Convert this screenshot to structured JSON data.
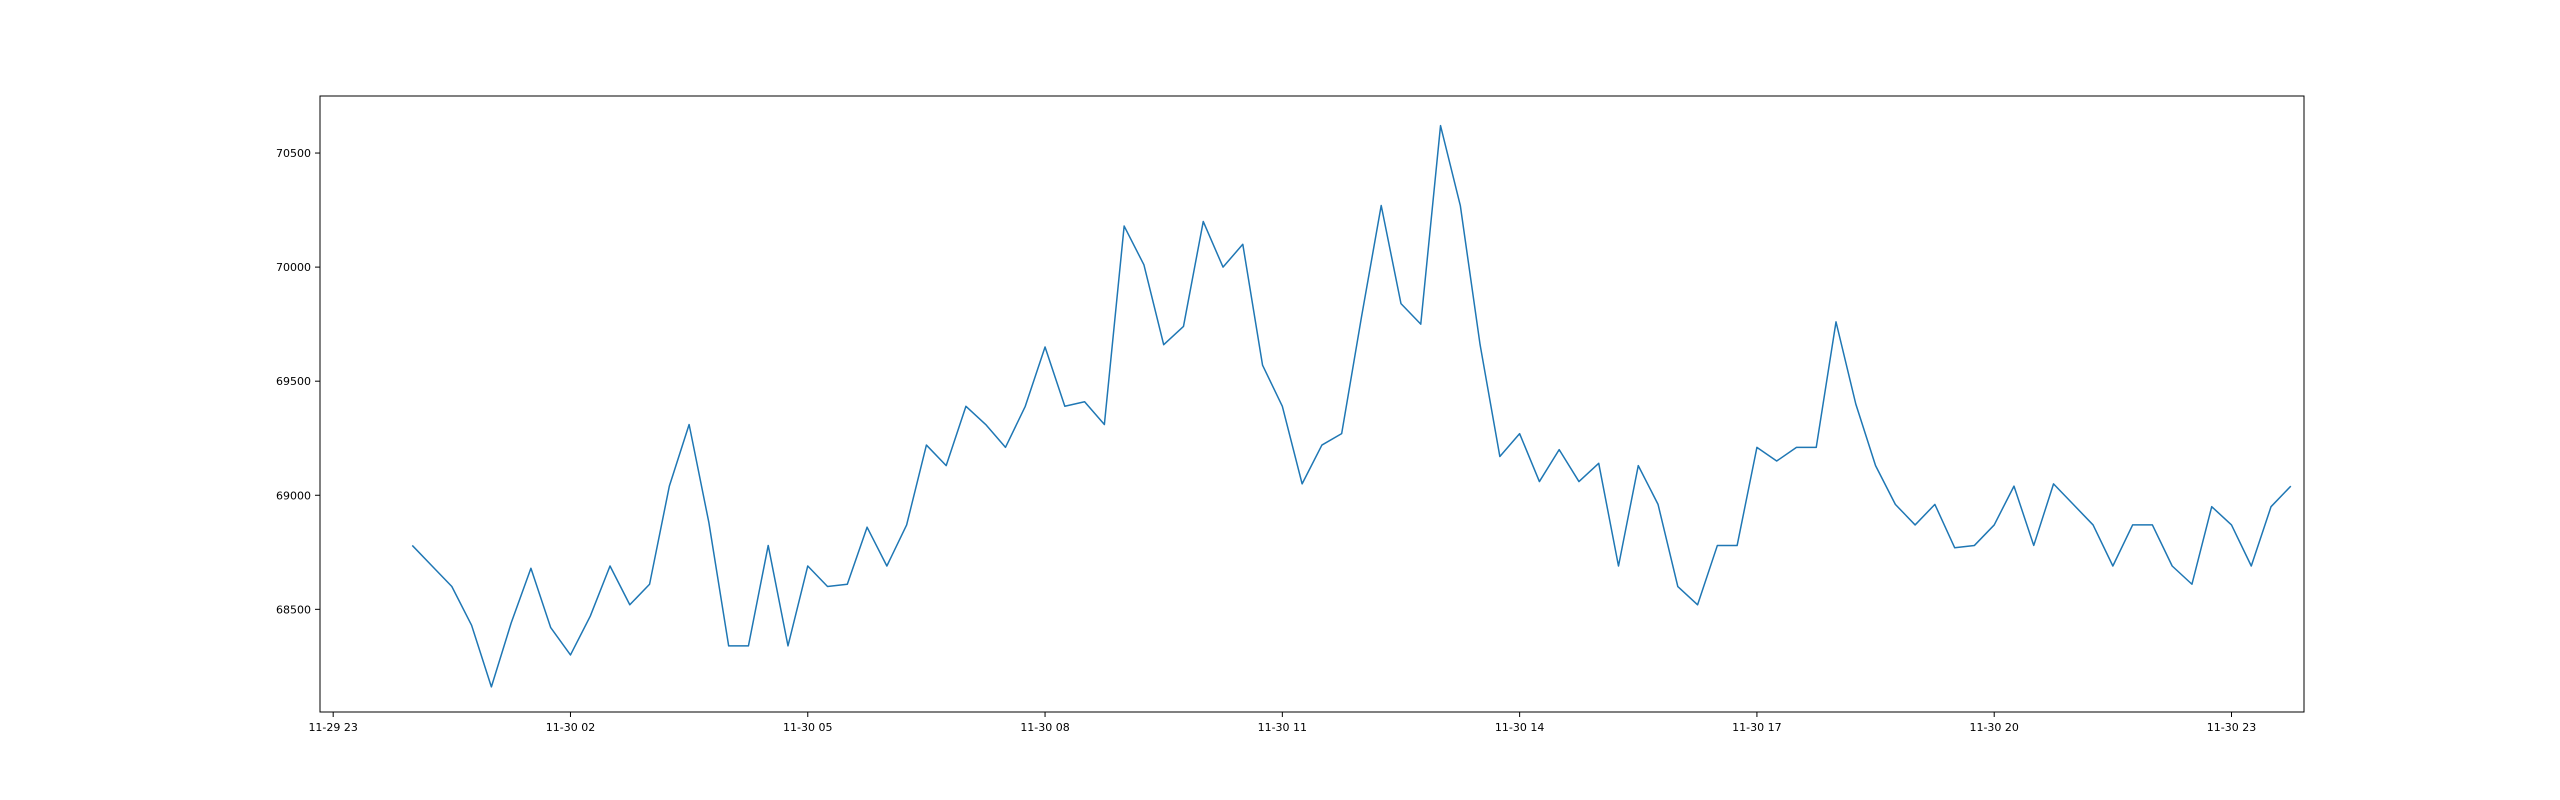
{
  "chart_data": {
    "type": "line",
    "title": "",
    "xlabel": "",
    "ylabel": "",
    "x_tick_labels": [
      "11-29 23",
      "11-30 02",
      "11-30 05",
      "11-30 08",
      "11-30 11",
      "11-30 14",
      "11-30 17",
      "11-30 20",
      "11-30 23"
    ],
    "y_tick_labels": [
      "68500",
      "69000",
      "69500",
      "70000",
      "70500"
    ],
    "y_ticks": [
      68500,
      69000,
      69500,
      70000,
      70500
    ],
    "xlim": [
      "2024-11-29 22:50",
      "2024-11-30 23:55"
    ],
    "ylim": [
      68050,
      70750
    ],
    "grid": false,
    "series": [
      {
        "color": "#1f77b4",
        "x": [
          "2024-11-30 00:00",
          "2024-11-30 00:15",
          "2024-11-30 00:30",
          "2024-11-30 00:45",
          "2024-11-30 01:00",
          "2024-11-30 01:15",
          "2024-11-30 01:30",
          "2024-11-30 01:45",
          "2024-11-30 02:00",
          "2024-11-30 02:15",
          "2024-11-30 02:30",
          "2024-11-30 02:45",
          "2024-11-30 03:00",
          "2024-11-30 03:15",
          "2024-11-30 03:30",
          "2024-11-30 03:45",
          "2024-11-30 04:00",
          "2024-11-30 04:15",
          "2024-11-30 04:30",
          "2024-11-30 04:45",
          "2024-11-30 05:00",
          "2024-11-30 05:15",
          "2024-11-30 05:30",
          "2024-11-30 05:45",
          "2024-11-30 06:00",
          "2024-11-30 06:15",
          "2024-11-30 06:30",
          "2024-11-30 06:45",
          "2024-11-30 07:00",
          "2024-11-30 07:15",
          "2024-11-30 07:30",
          "2024-11-30 07:45",
          "2024-11-30 08:00",
          "2024-11-30 08:15",
          "2024-11-30 08:30",
          "2024-11-30 08:45",
          "2024-11-30 09:00",
          "2024-11-30 09:15",
          "2024-11-30 09:30",
          "2024-11-30 09:45",
          "2024-11-30 10:00",
          "2024-11-30 10:15",
          "2024-11-30 10:30",
          "2024-11-30 10:45",
          "2024-11-30 11:00",
          "2024-11-30 11:15",
          "2024-11-30 11:30",
          "2024-11-30 11:45",
          "2024-11-30 12:00",
          "2024-11-30 12:15",
          "2024-11-30 12:30",
          "2024-11-30 12:45",
          "2024-11-30 13:00",
          "2024-11-30 13:15",
          "2024-11-30 13:30",
          "2024-11-30 13:45",
          "2024-11-30 14:00",
          "2024-11-30 14:15",
          "2024-11-30 14:30",
          "2024-11-30 14:45",
          "2024-11-30 15:00",
          "2024-11-30 15:15",
          "2024-11-30 15:30",
          "2024-11-30 15:45",
          "2024-11-30 16:00",
          "2024-11-30 16:15",
          "2024-11-30 16:30",
          "2024-11-30 16:45",
          "2024-11-30 17:00",
          "2024-11-30 17:15",
          "2024-11-30 17:30",
          "2024-11-30 17:45",
          "2024-11-30 18:00",
          "2024-11-30 18:15",
          "2024-11-30 18:30",
          "2024-11-30 18:45",
          "2024-11-30 19:00",
          "2024-11-30 19:15",
          "2024-11-30 19:30",
          "2024-11-30 19:45",
          "2024-11-30 20:00",
          "2024-11-30 20:15",
          "2024-11-30 20:30",
          "2024-11-30 20:45",
          "2024-11-30 21:00",
          "2024-11-30 21:15",
          "2024-11-30 21:30",
          "2024-11-30 21:45",
          "2024-11-30 22:00",
          "2024-11-30 22:15",
          "2024-11-30 22:30",
          "2024-11-30 22:45",
          "2024-11-30 23:00",
          "2024-11-30 23:15",
          "2024-11-30 23:30",
          "2024-11-30 23:45"
        ],
        "y": [
          68780,
          68690,
          68600,
          68430,
          68160,
          68440,
          68680,
          68420,
          68300,
          68470,
          68690,
          68520,
          68610,
          69040,
          69310,
          68880,
          68340,
          68340,
          68780,
          68340,
          68690,
          68600,
          68610,
          68860,
          68690,
          68870,
          69220,
          69130,
          69390,
          69310,
          69210,
          69390,
          69650,
          69390,
          69410,
          69310,
          70180,
          70010,
          69660,
          69740,
          70200,
          70000,
          70100,
          69570,
          69390,
          69050,
          69220,
          69270,
          69780,
          70270,
          69840,
          69750,
          70620,
          70270,
          69660,
          69170,
          69270,
          69060,
          69200,
          69060,
          69140,
          68690,
          69130,
          68960,
          68600,
          68520,
          68780,
          68780,
          69210,
          69150,
          69210,
          69210,
          69760,
          69400,
          69130,
          68960,
          68870,
          68960,
          68770,
          68780,
          68870,
          69040,
          68780,
          69050,
          68960,
          68870,
          68690,
          68870,
          68870,
          68690,
          68610,
          68950,
          68870,
          68690,
          68950,
          69040
        ]
      }
    ]
  }
}
